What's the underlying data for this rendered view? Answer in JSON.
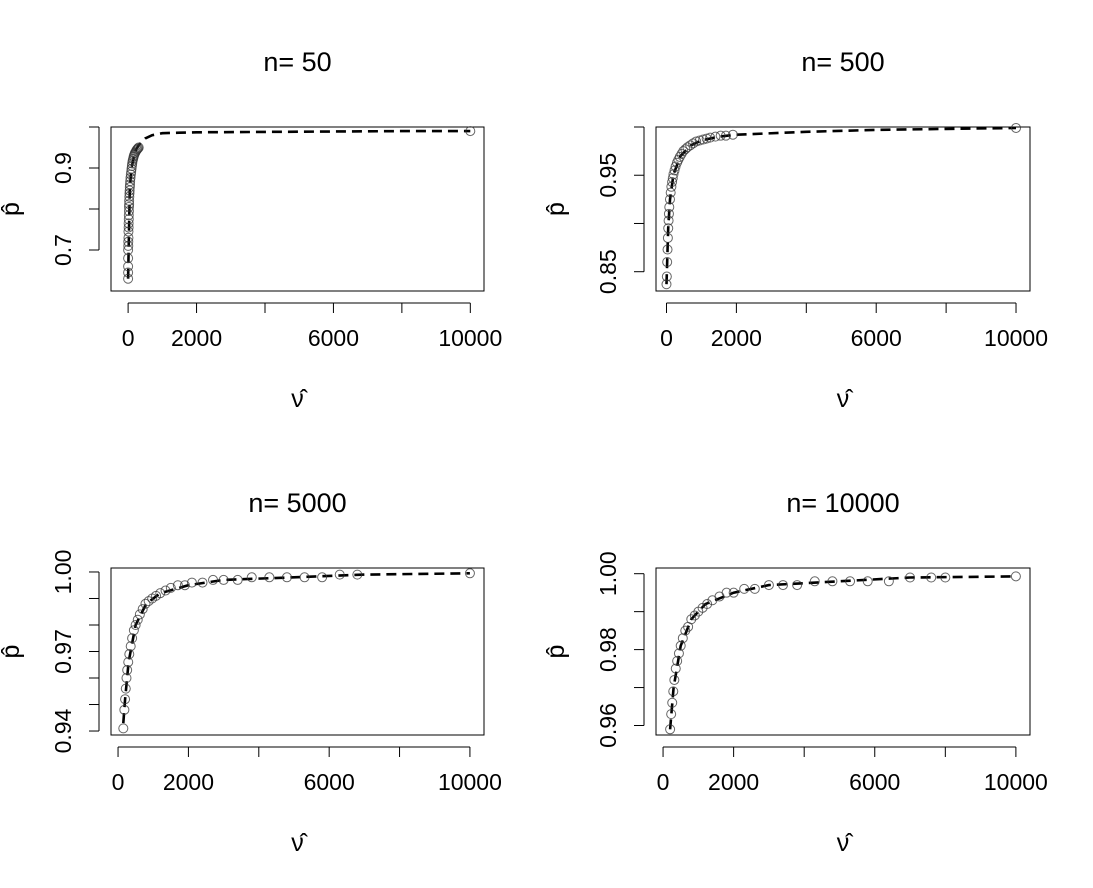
{
  "chart_data": [
    {
      "type": "scatter",
      "title": "n= 50",
      "xlabel": "ν̂",
      "ylabel": "p̂",
      "xlim": [
        -500,
        10400
      ],
      "ylim": [
        0.6,
        1.0
      ],
      "xticks": [
        0,
        2000,
        6000,
        10000
      ],
      "xtick_labels": [
        "0",
        "2000",
        "6000",
        "10000"
      ],
      "xticks_minor": [
        4000,
        8000
      ],
      "yticks": [
        0.7,
        0.8,
        0.9,
        1.0
      ],
      "ytick_labels": [
        "0.7",
        "",
        "0.9",
        ""
      ],
      "points_x": [
        0,
        0,
        0,
        0,
        0,
        5,
        5,
        10,
        10,
        15,
        15,
        20,
        20,
        25,
        25,
        30,
        30,
        35,
        40,
        45,
        50,
        55,
        60,
        70,
        80,
        90,
        100,
        110,
        120,
        130,
        145,
        160,
        175,
        190,
        210,
        230,
        250,
        270,
        290,
        310,
        10000
      ],
      "points_y": [
        0.63,
        0.645,
        0.66,
        0.68,
        0.7,
        0.71,
        0.72,
        0.73,
        0.745,
        0.755,
        0.765,
        0.775,
        0.785,
        0.795,
        0.805,
        0.812,
        0.82,
        0.83,
        0.838,
        0.845,
        0.853,
        0.86,
        0.868,
        0.876,
        0.884,
        0.891,
        0.898,
        0.905,
        0.911,
        0.917,
        0.922,
        0.927,
        0.931,
        0.935,
        0.938,
        0.941,
        0.944,
        0.946,
        0.948,
        0.95,
        0.99
      ],
      "line_x": [
        0,
        50,
        100,
        200,
        300,
        500,
        700,
        1000,
        1500,
        2000,
        4000,
        6000,
        8000,
        10000
      ],
      "line_y": [
        0.63,
        0.85,
        0.9,
        0.94,
        0.955,
        0.972,
        0.98,
        0.985,
        0.986,
        0.987,
        0.988,
        0.989,
        0.99,
        0.99
      ]
    },
    {
      "type": "scatter",
      "title": "n= 500",
      "xlabel": "ν̂",
      "ylabel": "p̂",
      "xlim": [
        -300,
        10400
      ],
      "ylim": [
        0.83,
        1.0
      ],
      "xticks": [
        0,
        2000,
        6000,
        10000
      ],
      "xtick_labels": [
        "0",
        "2000",
        "6000",
        "10000"
      ],
      "xticks_minor": [
        4000,
        8000
      ],
      "yticks": [
        0.85,
        0.9,
        0.95,
        1.0
      ],
      "ytick_labels": [
        "0.85",
        "",
        "0.95",
        ""
      ],
      "points_x": [
        0,
        10,
        20,
        30,
        40,
        50,
        60,
        70,
        80,
        100,
        120,
        140,
        160,
        180,
        200,
        230,
        260,
        300,
        340,
        380,
        430,
        480,
        540,
        600,
        680,
        760,
        850,
        950,
        1050,
        1150,
        1250,
        1400,
        1550,
        1700,
        1900,
        10000
      ],
      "points_y": [
        0.837,
        0.845,
        0.86,
        0.873,
        0.885,
        0.895,
        0.903,
        0.91,
        0.917,
        0.925,
        0.932,
        0.938,
        0.943,
        0.947,
        0.951,
        0.955,
        0.959,
        0.963,
        0.966,
        0.969,
        0.972,
        0.975,
        0.977,
        0.979,
        0.981,
        0.983,
        0.985,
        0.986,
        0.987,
        0.988,
        0.989,
        0.99,
        0.991,
        0.991,
        0.992,
        0.999
      ],
      "line_x": [
        0,
        50,
        100,
        200,
        400,
        700,
        1000,
        1500,
        2000,
        4000,
        6000,
        8000,
        10000
      ],
      "line_y": [
        0.837,
        0.895,
        0.925,
        0.951,
        0.97,
        0.981,
        0.986,
        0.99,
        0.992,
        0.995,
        0.997,
        0.998,
        0.999
      ]
    },
    {
      "type": "scatter",
      "title": "n= 5000",
      "xlabel": "ν̂",
      "ylabel": "p̂",
      "xlim": [
        -200,
        10400
      ],
      "ylim": [
        0.9385,
        1.0015
      ],
      "xticks": [
        0,
        2000,
        6000,
        10000
      ],
      "xtick_labels": [
        "0",
        "2000",
        "6000",
        "10000"
      ],
      "xticks_minor": [
        4000,
        8000
      ],
      "yticks": [
        0.94,
        0.95,
        0.96,
        0.97,
        0.98,
        0.99,
        1.0
      ],
      "ytick_labels": [
        "0.94",
        "",
        "",
        "0.97",
        "",
        "",
        "1.00"
      ],
      "points_x": [
        150,
        180,
        200,
        220,
        240,
        260,
        290,
        320,
        360,
        400,
        450,
        500,
        560,
        620,
        700,
        780,
        870,
        970,
        1080,
        1200,
        1350,
        1500,
        1700,
        1900,
        2100,
        2400,
        2700,
        3000,
        3400,
        3800,
        4300,
        4800,
        5300,
        5800,
        6300,
        6800,
        10000
      ],
      "points_y": [
        0.941,
        0.948,
        0.952,
        0.956,
        0.96,
        0.963,
        0.966,
        0.969,
        0.972,
        0.975,
        0.978,
        0.98,
        0.982,
        0.984,
        0.986,
        0.988,
        0.989,
        0.99,
        0.991,
        0.992,
        0.993,
        0.994,
        0.995,
        0.995,
        0.996,
        0.996,
        0.997,
        0.997,
        0.997,
        0.998,
        0.998,
        0.998,
        0.998,
        0.998,
        0.999,
        0.999,
        0.9995
      ],
      "line_x": [
        150,
        200,
        300,
        500,
        800,
        1200,
        2000,
        3000,
        5000,
        7000,
        10000
      ],
      "line_y": [
        0.943,
        0.952,
        0.966,
        0.98,
        0.988,
        0.992,
        0.995,
        0.997,
        0.998,
        0.999,
        0.9995
      ]
    },
    {
      "type": "scatter",
      "title": "n= 10000",
      "xlabel": "ν̂",
      "ylabel": "p̂",
      "xlim": [
        -200,
        10400
      ],
      "ylim": [
        0.9575,
        1.0015
      ],
      "xticks": [
        0,
        2000,
        6000,
        10000
      ],
      "xtick_labels": [
        "0",
        "2000",
        "6000",
        "10000"
      ],
      "xticks_minor": [
        4000,
        8000
      ],
      "yticks": [
        0.96,
        0.97,
        0.98,
        0.99,
        1.0
      ],
      "ytick_labels": [
        "0.96",
        "",
        "0.98",
        "",
        "1.00"
      ],
      "points_x": [
        200,
        230,
        260,
        290,
        320,
        360,
        400,
        450,
        500,
        560,
        630,
        710,
        800,
        900,
        1000,
        1120,
        1250,
        1400,
        1600,
        1800,
        2000,
        2300,
        2600,
        3000,
        3400,
        3800,
        4300,
        4800,
        5300,
        5800,
        6400,
        7000,
        7600,
        8000,
        10000
      ],
      "points_y": [
        0.959,
        0.963,
        0.966,
        0.969,
        0.972,
        0.975,
        0.977,
        0.979,
        0.981,
        0.983,
        0.985,
        0.986,
        0.988,
        0.989,
        0.99,
        0.991,
        0.992,
        0.993,
        0.994,
        0.995,
        0.995,
        0.996,
        0.996,
        0.997,
        0.997,
        0.997,
        0.998,
        0.998,
        0.998,
        0.998,
        0.998,
        0.999,
        0.999,
        0.999,
        0.9993
      ],
      "line_x": [
        200,
        300,
        500,
        800,
        1200,
        2000,
        3000,
        5000,
        7000,
        10000
      ],
      "line_y": [
        0.959,
        0.97,
        0.981,
        0.988,
        0.992,
        0.995,
        0.997,
        0.998,
        0.999,
        0.9993
      ]
    }
  ]
}
